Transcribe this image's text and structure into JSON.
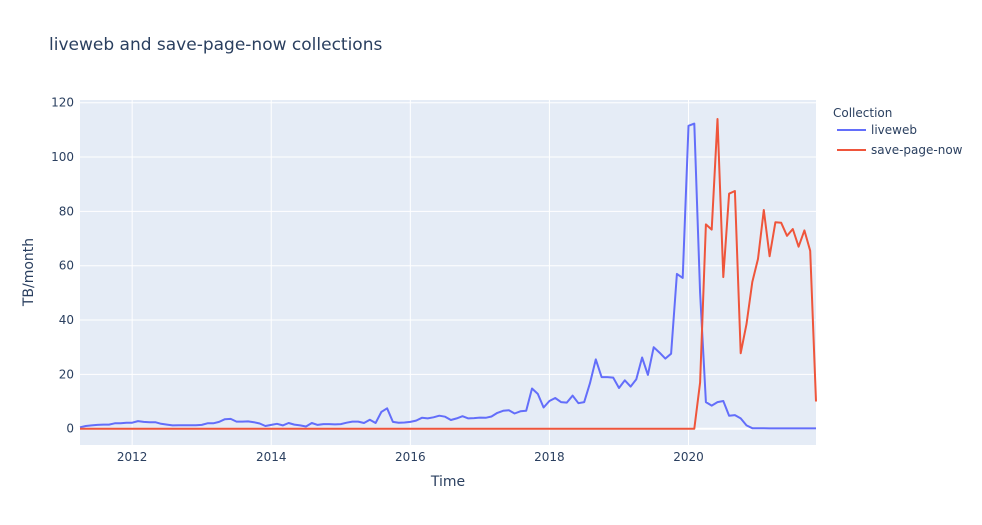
{
  "chart_data": {
    "type": "line",
    "title": "liveweb and save-page-now collections",
    "xlabel": "Time",
    "ylabel": "TB/month",
    "xlim": [
      "2011-04",
      "2021-11"
    ],
    "ylim": [
      -6,
      121
    ],
    "x_ticks": [
      "2012",
      "2014",
      "2016",
      "2018",
      "2020"
    ],
    "y_ticks": [
      0,
      20,
      40,
      60,
      80,
      100,
      120
    ],
    "grid": true,
    "plot_background": "#e5ecf6",
    "legend": {
      "title": "Collection",
      "position": "right"
    },
    "x": [
      "2011-04",
      "2011-05",
      "2011-06",
      "2011-07",
      "2011-08",
      "2011-09",
      "2011-10",
      "2011-11",
      "2011-12",
      "2012-01",
      "2012-02",
      "2012-03",
      "2012-04",
      "2012-05",
      "2012-06",
      "2012-07",
      "2012-08",
      "2012-09",
      "2012-10",
      "2012-11",
      "2012-12",
      "2013-01",
      "2013-02",
      "2013-03",
      "2013-04",
      "2013-05",
      "2013-06",
      "2013-07",
      "2013-08",
      "2013-09",
      "2013-10",
      "2013-11",
      "2013-12",
      "2014-01",
      "2014-02",
      "2014-03",
      "2014-04",
      "2014-05",
      "2014-06",
      "2014-07",
      "2014-08",
      "2014-09",
      "2014-10",
      "2014-11",
      "2014-12",
      "2015-01",
      "2015-02",
      "2015-03",
      "2015-04",
      "2015-05",
      "2015-06",
      "2015-07",
      "2015-08",
      "2015-09",
      "2015-10",
      "2015-11",
      "2015-12",
      "2016-01",
      "2016-02",
      "2016-03",
      "2016-04",
      "2016-05",
      "2016-06",
      "2016-07",
      "2016-08",
      "2016-09",
      "2016-10",
      "2016-11",
      "2016-12",
      "2017-01",
      "2017-02",
      "2017-03",
      "2017-04",
      "2017-05",
      "2017-06",
      "2017-07",
      "2017-08",
      "2017-09",
      "2017-10",
      "2017-11",
      "2017-12",
      "2018-01",
      "2018-02",
      "2018-03",
      "2018-04",
      "2018-05",
      "2018-06",
      "2018-07",
      "2018-08",
      "2018-09",
      "2018-10",
      "2018-11",
      "2018-12",
      "2019-01",
      "2019-02",
      "2019-03",
      "2019-04",
      "2019-05",
      "2019-06",
      "2019-07",
      "2019-08",
      "2019-09",
      "2019-10",
      "2019-11",
      "2019-12",
      "2020-01",
      "2020-02",
      "2020-03",
      "2020-04",
      "2020-05",
      "2020-06",
      "2020-07",
      "2020-08",
      "2020-09",
      "2020-10",
      "2020-11",
      "2020-12",
      "2021-01",
      "2021-02",
      "2021-03",
      "2021-04",
      "2021-05",
      "2021-06",
      "2021-07",
      "2021-08",
      "2021-09",
      "2021-10",
      "2021-11"
    ],
    "series": [
      {
        "name": "liveweb",
        "color": "#636efa",
        "values": [
          0.5,
          1.0,
          1.2,
          1.4,
          1.5,
          1.5,
          2.0,
          2.0,
          2.2,
          2.2,
          2.8,
          2.5,
          2.4,
          2.4,
          1.8,
          1.5,
          1.2,
          1.3,
          1.3,
          1.3,
          1.3,
          1.4,
          2.0,
          2.0,
          2.5,
          3.5,
          3.6,
          2.6,
          2.6,
          2.7,
          2.4,
          1.9,
          1.0,
          1.4,
          1.8,
          1.2,
          2.1,
          1.5,
          1.2,
          0.8,
          2.1,
          1.4,
          1.7,
          1.7,
          1.6,
          1.7,
          2.2,
          2.6,
          2.6,
          2.1,
          3.3,
          2.1,
          6.2,
          7.5,
          2.5,
          2.2,
          2.3,
          2.5,
          3.0,
          4.0,
          3.8,
          4.2,
          4.8,
          4.4,
          3.2,
          3.8,
          4.6,
          3.8,
          3.9,
          4.1,
          4.0,
          4.5,
          5.8,
          6.6,
          6.8,
          5.6,
          6.4,
          6.6,
          14.8,
          12.8,
          7.8,
          10.2,
          11.3,
          9.8,
          9.6,
          12.2,
          9.4,
          9.8,
          16.8,
          25.5,
          19.0,
          19.0,
          18.8,
          15.0,
          17.8,
          15.5,
          18.2,
          26.2,
          19.8,
          30.0,
          28.0,
          25.8,
          27.6,
          57.0,
          55.5,
          111.5,
          112.3,
          50.0,
          9.8,
          8.5,
          9.8,
          10.2,
          4.8,
          5.0,
          3.8,
          1.2,
          0.2,
          0.2,
          0.2,
          0.1,
          0.1,
          0.1,
          0.1,
          0.1,
          0.1,
          0.1,
          0.1,
          0.1
        ]
      },
      {
        "name": "save-page-now",
        "color": "#ef553b",
        "values": [
          0,
          0,
          0,
          0,
          0,
          0,
          0,
          0,
          0,
          0,
          0,
          0,
          0,
          0,
          0,
          0,
          0,
          0,
          0,
          0,
          0,
          0,
          0,
          0,
          0,
          0,
          0,
          0,
          0,
          0,
          0,
          0,
          0,
          0,
          0,
          0,
          0,
          0,
          0,
          0,
          0,
          0,
          0,
          0,
          0,
          0,
          0,
          0,
          0,
          0,
          0,
          0,
          0,
          0,
          0,
          0,
          0,
          0,
          0,
          0,
          0,
          0,
          0,
          0,
          0,
          0,
          0,
          0,
          0,
          0,
          0,
          0,
          0,
          0,
          0,
          0,
          0,
          0,
          0,
          0,
          0,
          0,
          0,
          0,
          0,
          0,
          0,
          0,
          0,
          0,
          0,
          0,
          0,
          0,
          0,
          0,
          0,
          0,
          0,
          0,
          0,
          0,
          0,
          0,
          0,
          0,
          0,
          17.0,
          75.2,
          73.3,
          114.0,
          55.8,
          86.5,
          87.5,
          27.8,
          38.5,
          54.0,
          62.5,
          80.5,
          63.5,
          76.0,
          75.8,
          71.0,
          73.5,
          67.0,
          73.0,
          65.5,
          10.0
        ]
      }
    ]
  }
}
